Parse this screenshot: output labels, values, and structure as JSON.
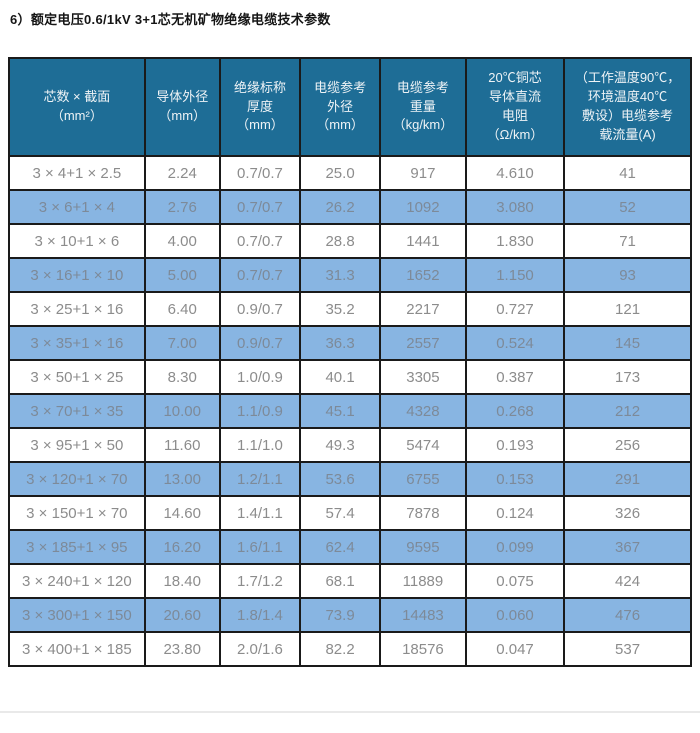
{
  "page": {
    "title": "6）额定电压0.6/1kV  3+1芯无机矿物绝缘电缆技术参数"
  },
  "table": {
    "headers": [
      "芯数 × 截面\n（mm²）",
      "导体外径\n（mm）",
      "绝缘标称\n厚度\n（mm）",
      "电缆参考\n外径\n（mm）",
      "电缆参考\n重量\n（kg/km）",
      "20℃铜芯\n导体直流\n电阻\n（Ω/km）",
      "（工作温度90℃，\n环境温度40℃\n敷设）电缆参考\n载流量(A)"
    ],
    "rows": [
      [
        "3 × 4+1 × 2.5",
        "2.24",
        "0.7/0.7",
        "25.0",
        "917",
        "4.610",
        "41"
      ],
      [
        "3 × 6+1 × 4",
        "2.76",
        "0.7/0.7",
        "26.2",
        "1092",
        "3.080",
        "52"
      ],
      [
        "3 × 10+1 × 6",
        "4.00",
        "0.7/0.7",
        "28.8",
        "1441",
        "1.830",
        "71"
      ],
      [
        "3 × 16+1 × 10",
        "5.00",
        "0.7/0.7",
        "31.3",
        "1652",
        "1.150",
        "93"
      ],
      [
        "3 × 25+1 × 16",
        "6.40",
        "0.9/0.7",
        "35.2",
        "2217",
        "0.727",
        "121"
      ],
      [
        "3 × 35+1 × 16",
        "7.00",
        "0.9/0.7",
        "36.3",
        "2557",
        "0.524",
        "145"
      ],
      [
        "3 × 50+1 × 25",
        "8.30",
        "1.0/0.9",
        "40.1",
        "3305",
        "0.387",
        "173"
      ],
      [
        "3 × 70+1 × 35",
        "10.00",
        "1.1/0.9",
        "45.1",
        "4328",
        "0.268",
        "212"
      ],
      [
        "3 × 95+1 × 50",
        "11.60",
        "1.1/1.0",
        "49.3",
        "5474",
        "0.193",
        "256"
      ],
      [
        "3 × 120+1 × 70",
        "13.00",
        "1.2/1.1",
        "53.6",
        "6755",
        "0.153",
        "291"
      ],
      [
        "3 × 150+1 × 70",
        "14.60",
        "1.4/1.1",
        "57.4",
        "7878",
        "0.124",
        "326"
      ],
      [
        "3 × 185+1 × 95",
        "16.20",
        "1.6/1.1",
        "62.4",
        "9595",
        "0.099",
        "367"
      ],
      [
        "3 × 240+1 × 120",
        "18.40",
        "1.7/1.2",
        "68.1",
        "11889",
        "0.075",
        "424"
      ],
      [
        "3 × 300+1 × 150",
        "20.60",
        "1.8/1.4",
        "73.9",
        "14483",
        "0.060",
        "476"
      ],
      [
        "3 × 400+1 × 185",
        "23.80",
        "2.0/1.6",
        "82.2",
        "18576",
        "0.047",
        "537"
      ]
    ]
  },
  "colors": {
    "header_background": "#1e6d96",
    "header_text": "#eef3f6",
    "stripe_row_background": "#88b5e2",
    "cell_text": "#8c8c8c",
    "border": "#1a1a1a"
  }
}
